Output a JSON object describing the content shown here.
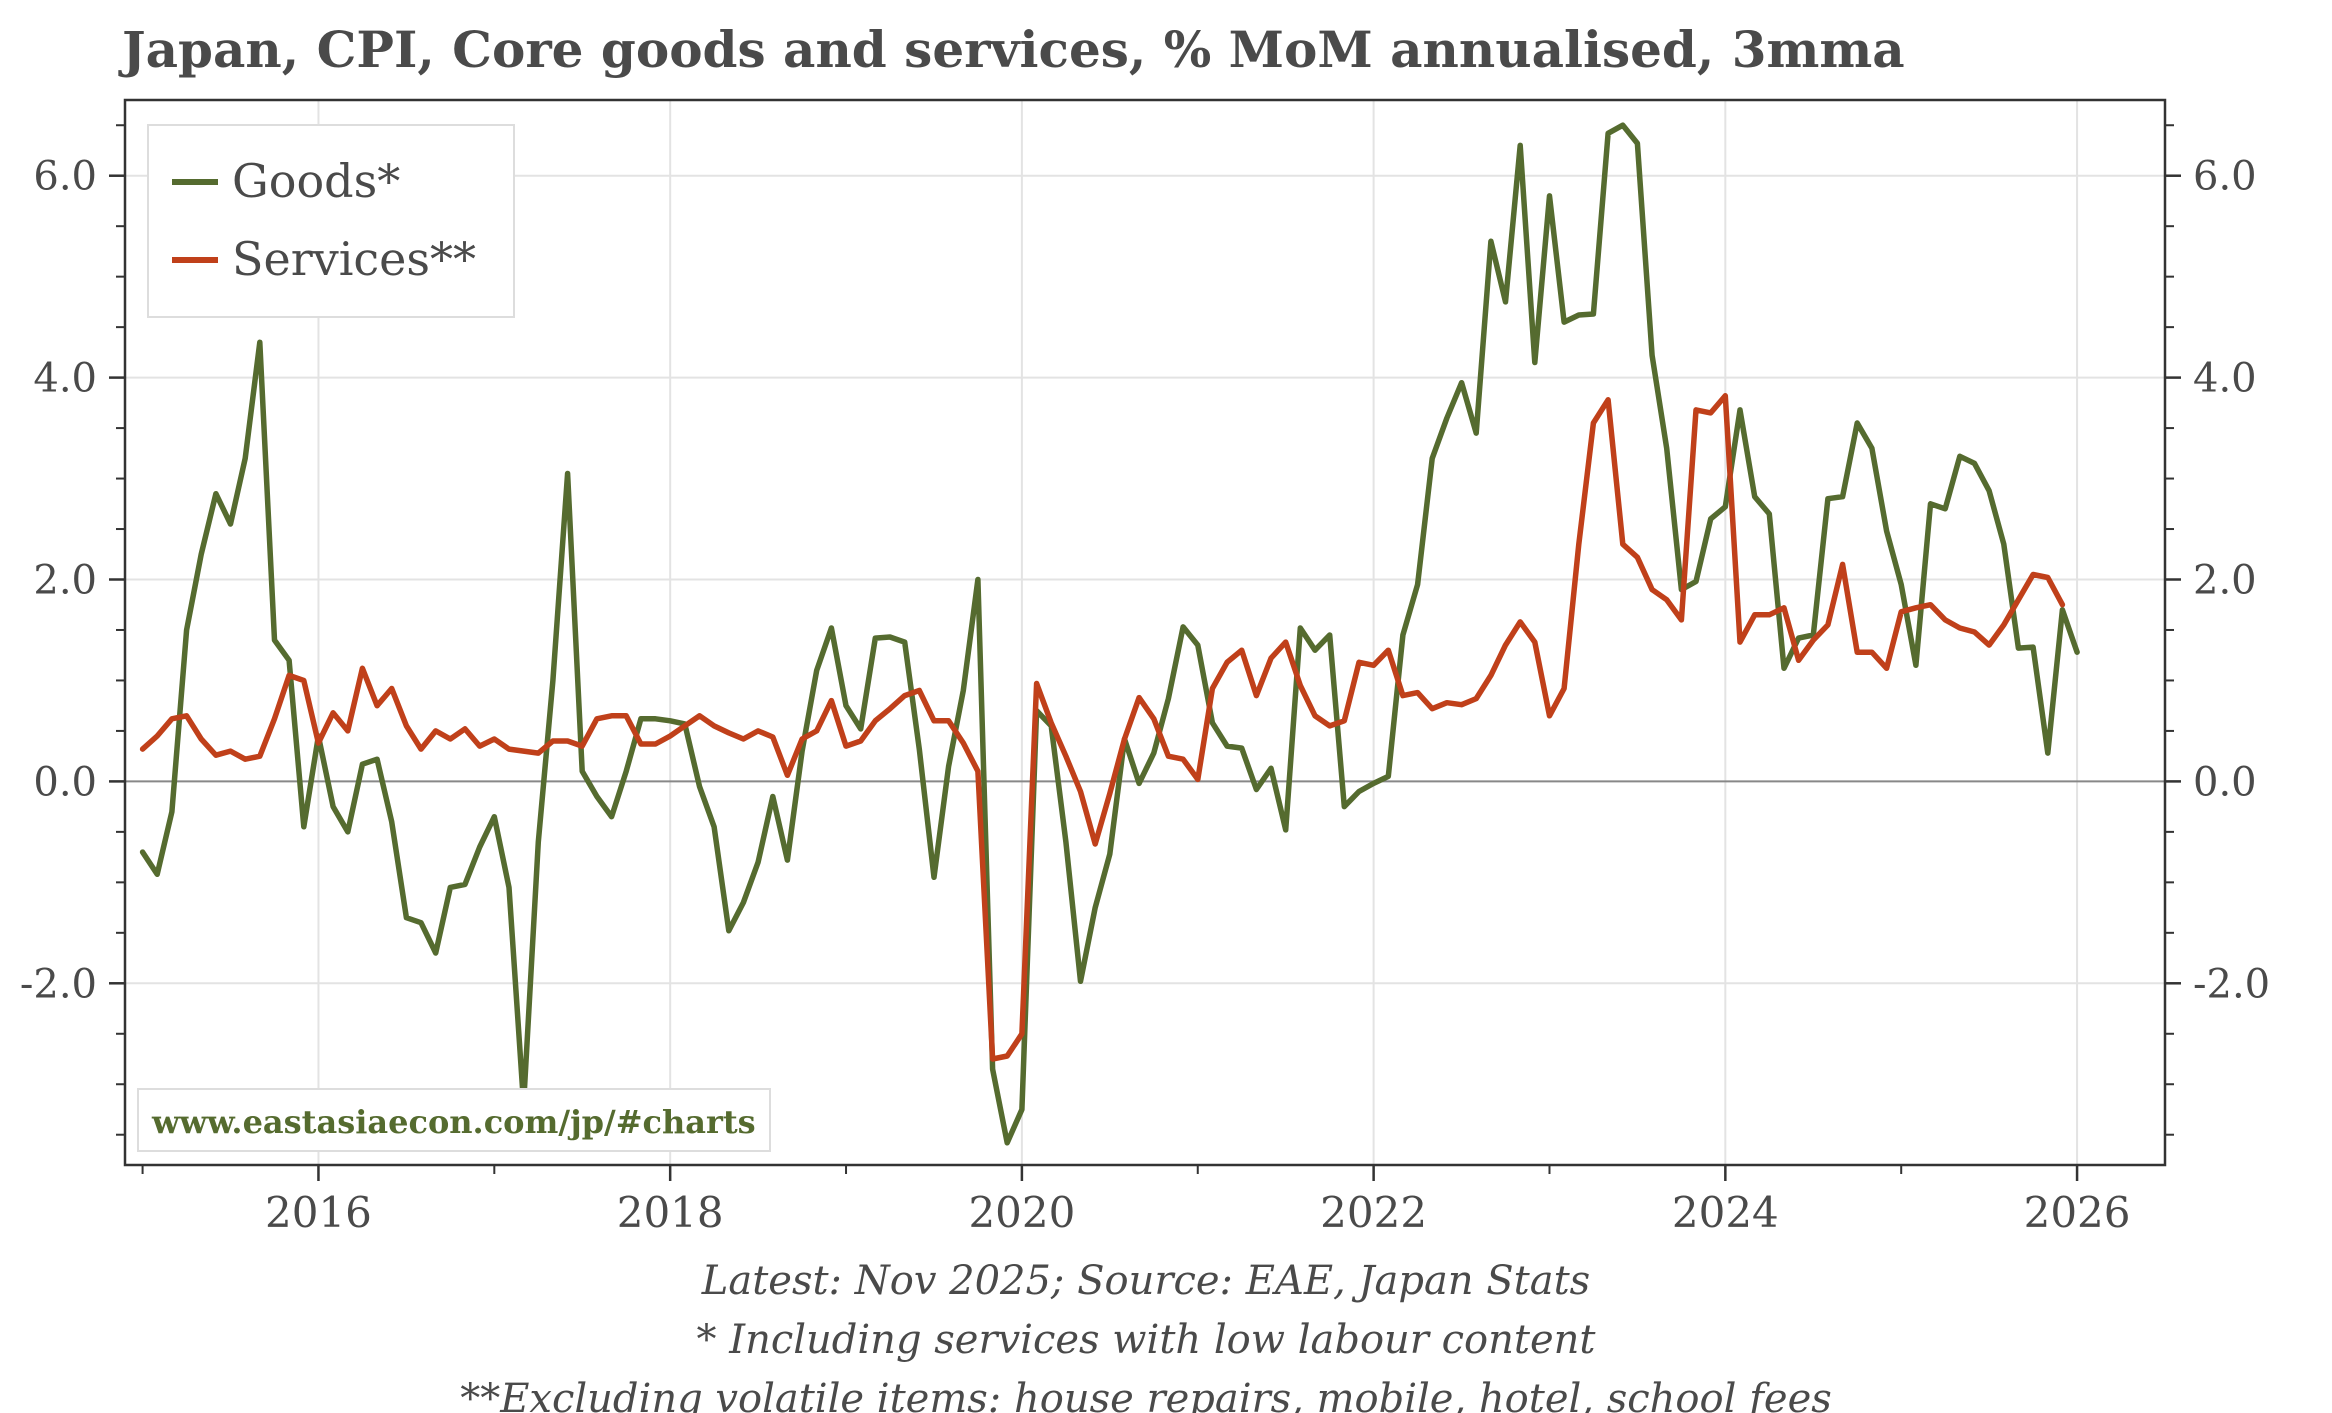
{
  "chart_data": {
    "type": "line",
    "title": "Japan, CPI, Core goods and services, % MoM annualised, 3mma",
    "xlabel": "",
    "ylabel": "",
    "x_ticks": [
      "2016",
      "2018",
      "2020",
      "2022",
      "2024",
      "2026"
    ],
    "y_ticks": [
      "6.0",
      "4.0",
      "2.0",
      "0.0",
      "-2.0"
    ],
    "xlim": [
      2014.9,
      2026.5
    ],
    "ylim": [
      -3.8,
      6.75
    ],
    "grid": true,
    "legend_position": "top-left",
    "x_start": "2015-01",
    "x_end": "2025-11",
    "series": [
      {
        "name": "Goods*",
        "color": "#556b2f",
        "values": [
          -0.7,
          -0.92,
          -0.3,
          1.5,
          2.25,
          2.85,
          2.55,
          3.2,
          4.35,
          1.4,
          1.2,
          -0.45,
          0.45,
          -0.25,
          -0.5,
          0.17,
          0.22,
          -0.4,
          -1.35,
          -1.4,
          -1.7,
          -1.05,
          -1.02,
          -0.65,
          -0.35,
          -1.05,
          -3.2,
          -0.6,
          1.0,
          3.05,
          0.1,
          -0.15,
          -0.35,
          0.1,
          0.62,
          0.62,
          0.6,
          0.57,
          -0.05,
          -0.45,
          -1.48,
          -1.2,
          -0.8,
          -0.15,
          -0.78,
          0.3,
          1.1,
          1.52,
          0.75,
          0.52,
          1.42,
          1.43,
          1.38,
          0.32,
          -0.95,
          0.15,
          0.9,
          2.0,
          -2.85,
          -3.58,
          -3.25,
          0.7,
          0.55,
          -0.6,
          -1.98,
          -1.25,
          -0.72,
          0.42,
          -0.02,
          0.28,
          0.82,
          1.53,
          1.35,
          0.58,
          0.35,
          0.33,
          -0.08,
          0.13,
          -0.48,
          1.52,
          1.3,
          1.45,
          -0.25,
          -0.1,
          -0.02,
          0.05,
          1.45,
          1.95,
          3.2,
          3.6,
          3.95,
          3.45,
          5.35,
          4.75,
          6.3,
          4.15,
          5.8,
          4.55,
          4.62,
          4.63,
          6.42,
          6.5,
          6.32,
          4.22,
          3.3,
          1.9,
          1.98,
          2.6,
          2.72,
          3.68,
          2.82,
          2.65,
          1.12,
          1.42,
          1.45,
          2.8,
          2.82,
          3.55,
          3.3,
          2.48,
          1.95,
          1.15,
          2.75,
          2.7,
          3.22,
          3.15,
          2.88,
          2.35,
          1.32,
          1.33,
          0.28,
          1.7,
          1.28
        ]
      },
      {
        "name": "Services**",
        "color": "#c0401a",
        "values": [
          0.32,
          0.45,
          0.62,
          0.65,
          0.42,
          0.26,
          0.3,
          0.22,
          0.25,
          0.62,
          1.05,
          1.0,
          0.38,
          0.68,
          0.5,
          1.12,
          0.75,
          0.92,
          0.55,
          0.32,
          0.5,
          0.42,
          0.52,
          0.35,
          0.42,
          0.32,
          0.3,
          0.28,
          0.4,
          0.4,
          0.35,
          0.62,
          0.65,
          0.65,
          0.37,
          0.37,
          0.45,
          0.55,
          0.65,
          0.55,
          0.48,
          0.42,
          0.5,
          0.44,
          0.06,
          0.42,
          0.5,
          0.8,
          0.35,
          0.4,
          0.6,
          0.72,
          0.85,
          0.9,
          0.6,
          0.6,
          0.38,
          0.1,
          -2.75,
          -2.72,
          -2.5,
          0.97,
          0.58,
          0.25,
          -0.1,
          -0.62,
          -0.12,
          0.42,
          0.83,
          0.62,
          0.25,
          0.22,
          0.02,
          0.92,
          1.18,
          1.3,
          0.85,
          1.22,
          1.38,
          0.95,
          0.65,
          0.55,
          0.6,
          1.18,
          1.15,
          1.3,
          0.85,
          0.88,
          0.72,
          0.78,
          0.76,
          0.82,
          1.05,
          1.35,
          1.58,
          1.38,
          0.65,
          0.92,
          2.35,
          3.55,
          3.78,
          2.35,
          2.22,
          1.9,
          1.8,
          1.6,
          3.68,
          3.65,
          3.82,
          1.38,
          1.65,
          1.65,
          1.72,
          1.2,
          1.4,
          1.55,
          2.15,
          1.28,
          1.28,
          1.12,
          1.68,
          1.72,
          1.75,
          1.6,
          1.52,
          1.48,
          1.35,
          1.55,
          1.8,
          2.05,
          2.02,
          1.75
        ]
      }
    ]
  },
  "legend": {
    "goods_label": "Goods*",
    "services_label": "Services**"
  },
  "watermark": "www.eastasiaecon.com/jp/#charts",
  "footnotes": {
    "line1": "Latest: Nov 2025; Source: EAE, Japan Stats",
    "line2": "* Including services with low labour content",
    "line3": "**Excluding volatile items: house repairs, mobile, hotel, school fees"
  }
}
